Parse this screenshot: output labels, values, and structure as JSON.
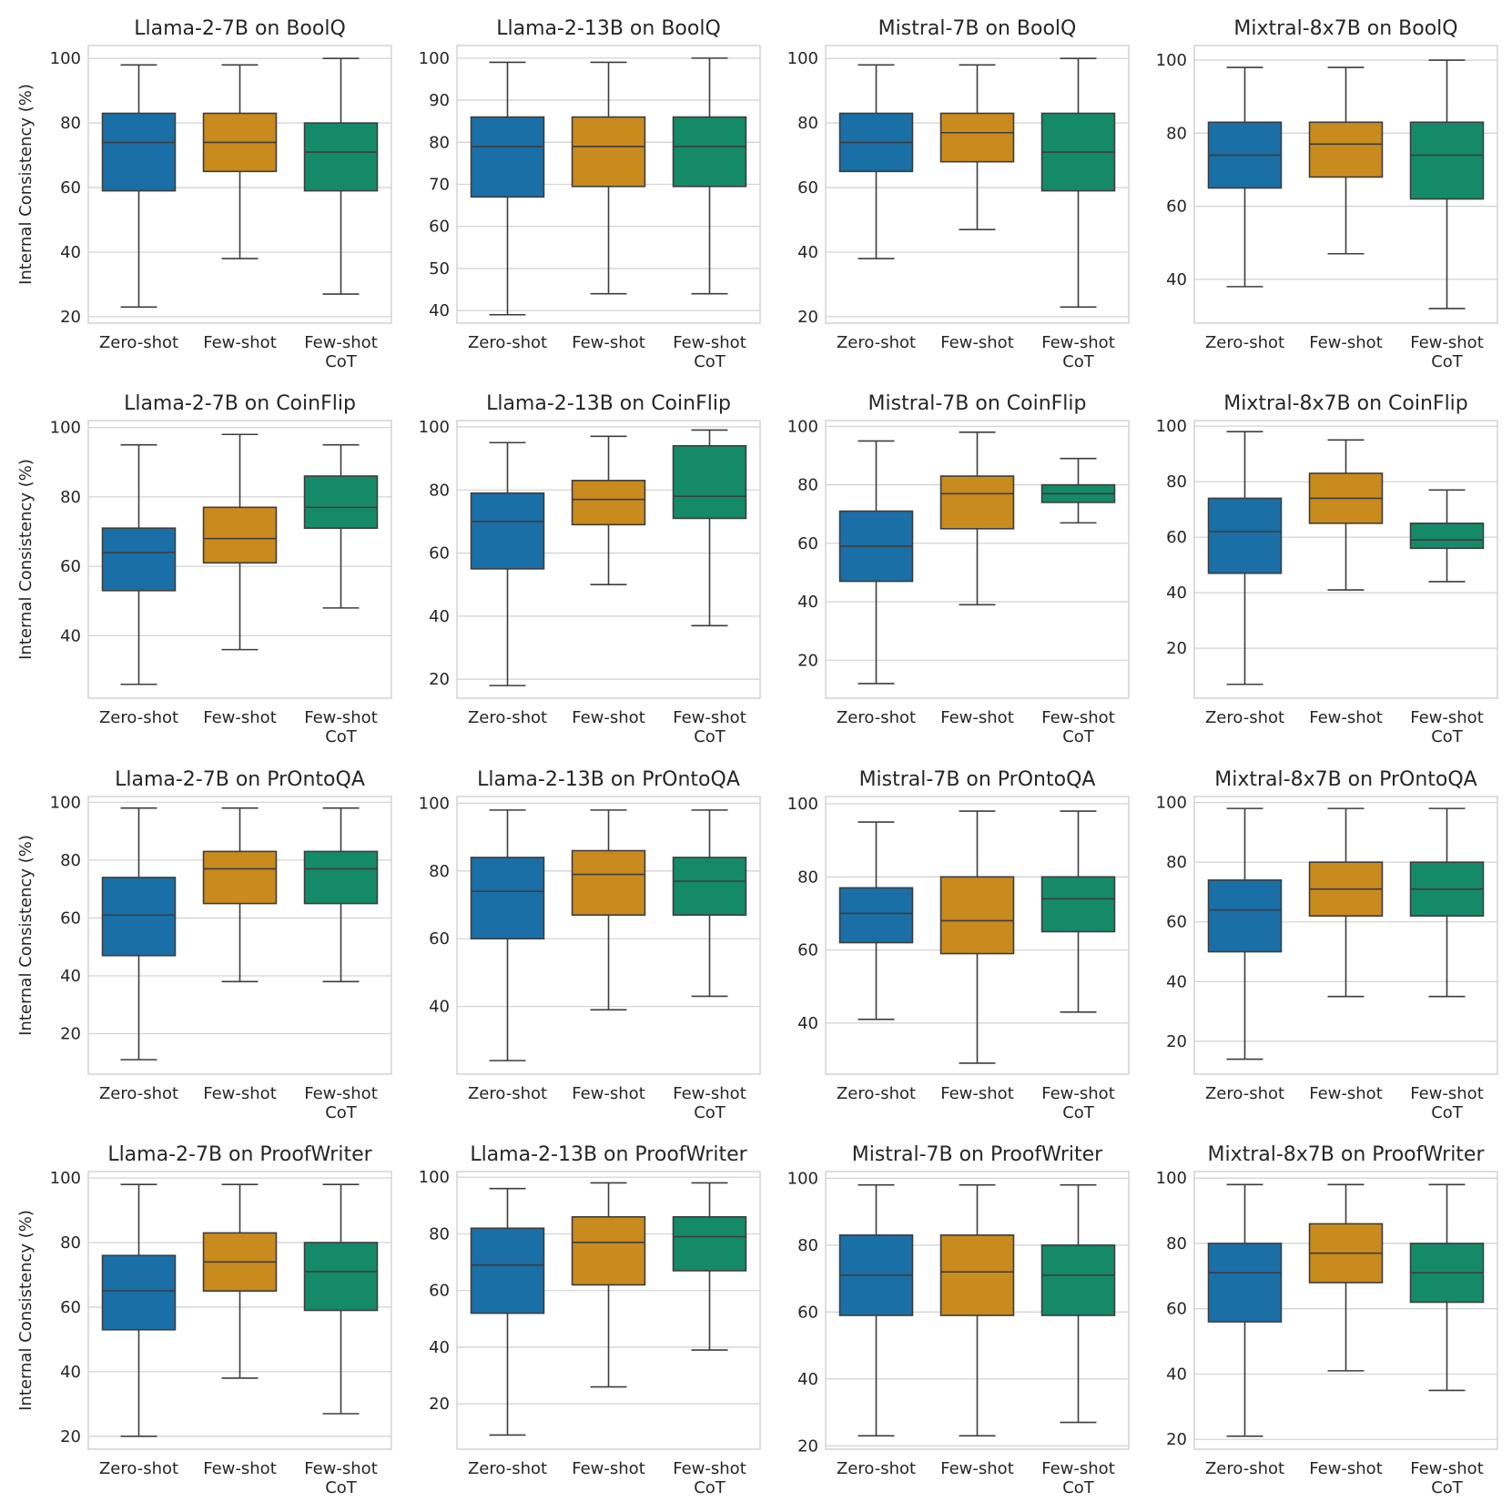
{
  "colors": {
    "Zero-shot": "#1a6fa6",
    "Few-shot": "#c98a1e",
    "Few-shot CoT": "#158a68"
  },
  "y_axis_label": "Internal Consistency (%)",
  "chart_data": [
    {
      "type": "box",
      "title": "Llama-2-7B on BoolQ",
      "categories": [
        "Zero-shot",
        "Few-shot",
        "Few-shot\nCoT"
      ],
      "ylabel": "Internal Consistency (%)",
      "ylim": [
        18,
        104
      ],
      "yticks": [
        20,
        40,
        60,
        80,
        100
      ],
      "grid": true,
      "boxes": [
        {
          "min": 23,
          "q1": 59,
          "median": 74,
          "q3": 83,
          "max": 98
        },
        {
          "min": 38,
          "q1": 65,
          "median": 74,
          "q3": 83,
          "max": 98
        },
        {
          "min": 27,
          "q1": 59,
          "median": 71,
          "q3": 80,
          "max": 100
        }
      ]
    },
    {
      "type": "box",
      "title": "Llama-2-13B on BoolQ",
      "categories": [
        "Zero-shot",
        "Few-shot",
        "Few-shot\nCoT"
      ],
      "ylabel": "",
      "ylim": [
        37,
        103
      ],
      "yticks": [
        40,
        50,
        60,
        70,
        80,
        90,
        100
      ],
      "grid": true,
      "boxes": [
        {
          "min": 39,
          "q1": 67,
          "median": 79,
          "q3": 86,
          "max": 99
        },
        {
          "min": 44,
          "q1": 69.5,
          "median": 79,
          "q3": 86,
          "max": 99
        },
        {
          "min": 44,
          "q1": 69.5,
          "median": 79,
          "q3": 86,
          "max": 100
        }
      ]
    },
    {
      "type": "box",
      "title": "Mistral-7B on BoolQ",
      "categories": [
        "Zero-shot",
        "Few-shot",
        "Few-shot\nCoT"
      ],
      "ylabel": "",
      "ylim": [
        18,
        104
      ],
      "yticks": [
        20,
        40,
        60,
        80,
        100
      ],
      "grid": true,
      "boxes": [
        {
          "min": 38,
          "q1": 65,
          "median": 74,
          "q3": 83,
          "max": 98
        },
        {
          "min": 47,
          "q1": 68,
          "median": 77,
          "q3": 83,
          "max": 98
        },
        {
          "min": 23,
          "q1": 59,
          "median": 71,
          "q3": 83,
          "max": 100
        }
      ]
    },
    {
      "type": "box",
      "title": "Mixtral-8x7B on BoolQ",
      "categories": [
        "Zero-shot",
        "Few-shot",
        "Few-shot\nCoT"
      ],
      "ylabel": "",
      "ylim": [
        28,
        104
      ],
      "yticks": [
        40,
        60,
        80,
        100
      ],
      "grid": true,
      "boxes": [
        {
          "min": 38,
          "q1": 65,
          "median": 74,
          "q3": 83,
          "max": 98
        },
        {
          "min": 47,
          "q1": 68,
          "median": 77,
          "q3": 83,
          "max": 98
        },
        {
          "min": 32,
          "q1": 62,
          "median": 74,
          "q3": 83,
          "max": 100
        }
      ]
    },
    {
      "type": "box",
      "title": "Llama-2-7B on CoinFlip",
      "categories": [
        "Zero-shot",
        "Few-shot",
        "Few-shot\nCoT"
      ],
      "ylabel": "Internal Consistency (%)",
      "ylim": [
        22,
        102
      ],
      "yticks": [
        40,
        60,
        80,
        100
      ],
      "grid": true,
      "boxes": [
        {
          "min": 26,
          "q1": 53,
          "median": 64,
          "q3": 71,
          "max": 95
        },
        {
          "min": 36,
          "q1": 61,
          "median": 68,
          "q3": 77,
          "max": 98
        },
        {
          "min": 48,
          "q1": 71,
          "median": 77,
          "q3": 86,
          "max": 95
        }
      ]
    },
    {
      "type": "box",
      "title": "Llama-2-13B on CoinFlip",
      "categories": [
        "Zero-shot",
        "Few-shot",
        "Few-shot\nCoT"
      ],
      "ylabel": "",
      "ylim": [
        14,
        102
      ],
      "yticks": [
        20,
        40,
        60,
        80,
        100
      ],
      "grid": true,
      "boxes": [
        {
          "min": 18,
          "q1": 55,
          "median": 70,
          "q3": 79,
          "max": 95
        },
        {
          "min": 50,
          "q1": 69,
          "median": 77,
          "q3": 83,
          "max": 97
        },
        {
          "min": 37,
          "q1": 71,
          "median": 78,
          "q3": 94,
          "max": 99
        }
      ]
    },
    {
      "type": "box",
      "title": "Mistral-7B on CoinFlip",
      "categories": [
        "Zero-shot",
        "Few-shot",
        "Few-shot\nCoT"
      ],
      "ylabel": "",
      "ylim": [
        7,
        102
      ],
      "yticks": [
        20,
        40,
        60,
        80,
        100
      ],
      "grid": true,
      "boxes": [
        {
          "min": 12,
          "q1": 47,
          "median": 59,
          "q3": 71,
          "max": 95
        },
        {
          "min": 39,
          "q1": 65,
          "median": 77,
          "q3": 83,
          "max": 98
        },
        {
          "min": 67,
          "q1": 74,
          "median": 77,
          "q3": 80,
          "max": 89
        }
      ]
    },
    {
      "type": "box",
      "title": "Mixtral-8x7B on CoinFlip",
      "categories": [
        "Zero-shot",
        "Few-shot",
        "Few-shot\nCoT"
      ],
      "ylabel": "",
      "ylim": [
        2,
        102
      ],
      "yticks": [
        20,
        40,
        60,
        80,
        100
      ],
      "grid": true,
      "boxes": [
        {
          "min": 7,
          "q1": 47,
          "median": 62,
          "q3": 74,
          "max": 98
        },
        {
          "min": 41,
          "q1": 65,
          "median": 74,
          "q3": 83,
          "max": 95
        },
        {
          "min": 44,
          "q1": 56,
          "median": 59,
          "q3": 65,
          "max": 77
        }
      ]
    },
    {
      "type": "box",
      "title": "Llama-2-7B on PrOntoQA",
      "categories": [
        "Zero-shot",
        "Few-shot",
        "Few-shot\nCoT"
      ],
      "ylabel": "Internal Consistency (%)",
      "ylim": [
        6,
        102
      ],
      "yticks": [
        20,
        40,
        60,
        80,
        100
      ],
      "grid": true,
      "boxes": [
        {
          "min": 11,
          "q1": 47,
          "median": 61,
          "q3": 74,
          "max": 98
        },
        {
          "min": 38,
          "q1": 65,
          "median": 77,
          "q3": 83,
          "max": 98
        },
        {
          "min": 38,
          "q1": 65,
          "median": 77,
          "q3": 83,
          "max": 98
        }
      ]
    },
    {
      "type": "box",
      "title": "Llama-2-13B on PrOntoQA",
      "categories": [
        "Zero-shot",
        "Few-shot",
        "Few-shot\nCoT"
      ],
      "ylabel": "",
      "ylim": [
        20,
        102
      ],
      "yticks": [
        40,
        60,
        80,
        100
      ],
      "grid": true,
      "boxes": [
        {
          "min": 24,
          "q1": 60,
          "median": 74,
          "q3": 84,
          "max": 98
        },
        {
          "min": 39,
          "q1": 67,
          "median": 79,
          "q3": 86,
          "max": 98
        },
        {
          "min": 43,
          "q1": 67,
          "median": 77,
          "q3": 84,
          "max": 98
        }
      ]
    },
    {
      "type": "box",
      "title": "Mistral-7B on PrOntoQA",
      "categories": [
        "Zero-shot",
        "Few-shot",
        "Few-shot\nCoT"
      ],
      "ylabel": "",
      "ylim": [
        26,
        102
      ],
      "yticks": [
        40,
        60,
        80,
        100
      ],
      "grid": true,
      "boxes": [
        {
          "min": 41,
          "q1": 62,
          "median": 70,
          "q3": 77,
          "max": 95
        },
        {
          "min": 29,
          "q1": 59,
          "median": 68,
          "q3": 80,
          "max": 98
        },
        {
          "min": 43,
          "q1": 65,
          "median": 74,
          "q3": 80,
          "max": 98
        }
      ]
    },
    {
      "type": "box",
      "title": "Mixtral-8x7B on PrOntoQA",
      "categories": [
        "Zero-shot",
        "Few-shot",
        "Few-shot\nCoT"
      ],
      "ylabel": "",
      "ylim": [
        9,
        102
      ],
      "yticks": [
        20,
        40,
        60,
        80,
        100
      ],
      "grid": true,
      "boxes": [
        {
          "min": 14,
          "q1": 50,
          "median": 64,
          "q3": 74,
          "max": 98
        },
        {
          "min": 35,
          "q1": 62,
          "median": 71,
          "q3": 80,
          "max": 98
        },
        {
          "min": 35,
          "q1": 62,
          "median": 71,
          "q3": 80,
          "max": 98
        }
      ]
    },
    {
      "type": "box",
      "title": "Llama-2-7B on ProofWriter",
      "categories": [
        "Zero-shot",
        "Few-shot",
        "Few-shot\nCoT"
      ],
      "ylabel": "Internal Consistency (%)",
      "ylim": [
        16,
        102
      ],
      "yticks": [
        20,
        40,
        60,
        80,
        100
      ],
      "grid": true,
      "boxes": [
        {
          "min": 20,
          "q1": 53,
          "median": 65,
          "q3": 76,
          "max": 98
        },
        {
          "min": 38,
          "q1": 65,
          "median": 74,
          "q3": 83,
          "max": 98
        },
        {
          "min": 27,
          "q1": 59,
          "median": 71,
          "q3": 80,
          "max": 98
        }
      ]
    },
    {
      "type": "box",
      "title": "Llama-2-13B on ProofWriter",
      "categories": [
        "Zero-shot",
        "Few-shot",
        "Few-shot\nCoT"
      ],
      "ylabel": "",
      "ylim": [
        4,
        102
      ],
      "yticks": [
        20,
        40,
        60,
        80,
        100
      ],
      "grid": true,
      "boxes": [
        {
          "min": 9,
          "q1": 52,
          "median": 69,
          "q3": 82,
          "max": 96
        },
        {
          "min": 26,
          "q1": 62,
          "median": 77,
          "q3": 86,
          "max": 98
        },
        {
          "min": 39,
          "q1": 67,
          "median": 79,
          "q3": 86,
          "max": 98
        }
      ]
    },
    {
      "type": "box",
      "title": "Mistral-7B on ProofWriter",
      "categories": [
        "Zero-shot",
        "Few-shot",
        "Few-shot\nCoT"
      ],
      "ylabel": "",
      "ylim": [
        19,
        102
      ],
      "yticks": [
        20,
        40,
        60,
        80,
        100
      ],
      "grid": true,
      "boxes": [
        {
          "min": 23,
          "q1": 59,
          "median": 71,
          "q3": 83,
          "max": 98
        },
        {
          "min": 23,
          "q1": 59,
          "median": 72,
          "q3": 83,
          "max": 98
        },
        {
          "min": 27,
          "q1": 59,
          "median": 71,
          "q3": 80,
          "max": 98
        }
      ]
    },
    {
      "type": "box",
      "title": "Mixtral-8x7B on ProofWriter",
      "categories": [
        "Zero-shot",
        "Few-shot",
        "Few-shot\nCoT"
      ],
      "ylabel": "",
      "ylim": [
        17,
        102
      ],
      "yticks": [
        20,
        40,
        60,
        80,
        100
      ],
      "grid": true,
      "boxes": [
        {
          "min": 21,
          "q1": 56,
          "median": 71,
          "q3": 80,
          "max": 98
        },
        {
          "min": 41,
          "q1": 68,
          "median": 77,
          "q3": 86,
          "max": 98
        },
        {
          "min": 35,
          "q1": 62,
          "median": 71,
          "q3": 80,
          "max": 98
        }
      ]
    }
  ]
}
